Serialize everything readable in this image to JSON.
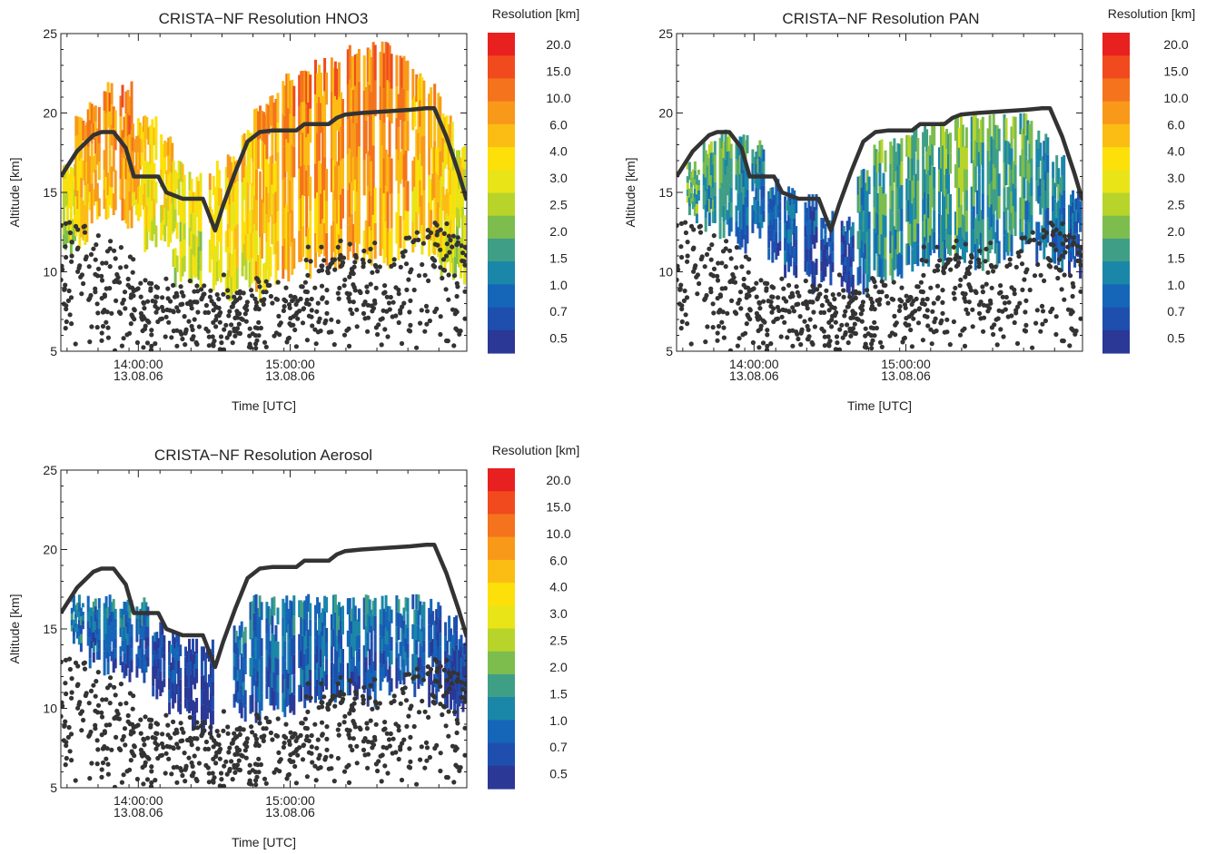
{
  "chart_data": [
    {
      "type": "heatmap",
      "title": "CRISTA−NF Resolution HNO3",
      "xlabel": "Time [UTC]",
      "ylabel": "Altitude [km]",
      "ylim": [
        5,
        25
      ],
      "yticks": [
        "5",
        "10",
        "15",
        "20",
        "25"
      ],
      "xlim": [
        "13:28",
        "15:39"
      ],
      "xticks": [
        {
          "time": "13:53",
          "line1": "14:00:00",
          "line2": "13.08.06"
        },
        {
          "time": "14:42",
          "line1": "15:00:00",
          "line2": "13.08.06"
        }
      ],
      "colorbar": {
        "title": "Resolution [km]",
        "labels": [
          "20.0",
          "15.0",
          "10.0",
          "6.0",
          "4.0",
          "3.0",
          "2.5",
          "2.0",
          "1.5",
          "1.0",
          "0.7",
          "0.5"
        ],
        "colors": [
          "#e82020",
          "#f04a1e",
          "#f4731c",
          "#f8991a",
          "#fbbd14",
          "#fde00a",
          "#e9e418",
          "#b8d42a",
          "#7cbd4e",
          "#3f9f86",
          "#1a86a8",
          "#1565b8",
          "#1e4fae",
          "#2b3896"
        ]
      },
      "description_series": "Colored resolution columns versus time and altitude, with flight altitude (thick line) and cloud points (dots).",
      "columns": [
        {
          "x": 0.02,
          "bottom": 10.5,
          "top": 17.0,
          "level": 6
        },
        {
          "x": 0.05,
          "bottom": 11.5,
          "top": 20.0,
          "level": 4
        },
        {
          "x": 0.08,
          "bottom": 13.0,
          "top": 21.0,
          "level": 3
        },
        {
          "x": 0.12,
          "bottom": 13.0,
          "top": 22.0,
          "level": 3
        },
        {
          "x": 0.16,
          "bottom": 12.5,
          "top": 22.0,
          "level": 3
        },
        {
          "x": 0.19,
          "bottom": 13.0,
          "top": 20.0,
          "level": 4
        },
        {
          "x": 0.22,
          "bottom": 11.0,
          "top": 20.0,
          "level": 5
        },
        {
          "x": 0.26,
          "bottom": 11.5,
          "top": 19.0,
          "level": 5
        },
        {
          "x": 0.29,
          "bottom": 9.0,
          "top": 17.0,
          "level": 6
        },
        {
          "x": 0.33,
          "bottom": 8.0,
          "top": 16.5,
          "level": 6
        },
        {
          "x": 0.38,
          "bottom": 8.5,
          "top": 17.0,
          "level": 5
        },
        {
          "x": 0.42,
          "bottom": 8.0,
          "top": 17.5,
          "level": 5
        },
        {
          "x": 0.46,
          "bottom": 9.0,
          "top": 19.0,
          "level": 5
        },
        {
          "x": 0.49,
          "bottom": 8.0,
          "top": 20.5,
          "level": 4
        },
        {
          "x": 0.52,
          "bottom": 9.0,
          "top": 21.5,
          "level": 4
        },
        {
          "x": 0.56,
          "bottom": 9.0,
          "top": 22.5,
          "level": 3
        },
        {
          "x": 0.6,
          "bottom": 9.5,
          "top": 23.0,
          "level": 3
        },
        {
          "x": 0.64,
          "bottom": 10.0,
          "top": 23.5,
          "level": 3
        },
        {
          "x": 0.68,
          "bottom": 10.0,
          "top": 23.5,
          "level": 3
        },
        {
          "x": 0.72,
          "bottom": 10.5,
          "top": 24.5,
          "level": 3
        },
        {
          "x": 0.76,
          "bottom": 10.0,
          "top": 24.5,
          "level": 3
        },
        {
          "x": 0.8,
          "bottom": 10.0,
          "top": 24.5,
          "level": 3
        },
        {
          "x": 0.84,
          "bottom": 10.5,
          "top": 24.0,
          "level": 3
        },
        {
          "x": 0.88,
          "bottom": 11.0,
          "top": 23.0,
          "level": 4
        },
        {
          "x": 0.92,
          "bottom": 10.0,
          "top": 22.0,
          "level": 4
        },
        {
          "x": 0.95,
          "bottom": 9.5,
          "top": 20.0,
          "level": 5
        },
        {
          "x": 0.98,
          "bottom": 9.0,
          "top": 18.0,
          "level": 6
        }
      ]
    },
    {
      "type": "heatmap",
      "title": "CRISTA−NF Resolution PAN",
      "xlabel": "Time [UTC]",
      "ylabel": "Altitude [km]",
      "ylim": [
        5,
        25
      ],
      "yticks": [
        "5",
        "10",
        "15",
        "20",
        "25"
      ],
      "xlim": [
        "13:28",
        "15:39"
      ],
      "xticks": [
        {
          "time": "13:53",
          "line1": "14:00:00",
          "line2": "13.08.06"
        },
        {
          "time": "14:42",
          "line1": "15:00:00",
          "line2": "13.08.06"
        }
      ],
      "colorbar": {
        "title": "Resolution [km]",
        "labels": [
          "20.0",
          "15.0",
          "10.0",
          "6.0",
          "4.0",
          "3.0",
          "2.5",
          "2.0",
          "1.5",
          "1.0",
          "0.7",
          "0.5"
        ],
        "colors": [
          "#e82020",
          "#f04a1e",
          "#f4731c",
          "#f8991a",
          "#fbbd14",
          "#fde00a",
          "#e9e418",
          "#b8d42a",
          "#7cbd4e",
          "#3f9f86",
          "#1a86a8",
          "#1565b8",
          "#1e4fae",
          "#2b3896"
        ]
      },
      "columns": [
        {
          "x": 0.04,
          "bottom": 13.0,
          "top": 17.0,
          "level": 8
        },
        {
          "x": 0.08,
          "bottom": 12.5,
          "top": 18.5,
          "level": 9
        },
        {
          "x": 0.12,
          "bottom": 12.0,
          "top": 19.0,
          "level": 9
        },
        {
          "x": 0.16,
          "bottom": 11.0,
          "top": 19.0,
          "level": 10
        },
        {
          "x": 0.2,
          "bottom": 12.0,
          "top": 18.5,
          "level": 10
        },
        {
          "x": 0.24,
          "bottom": 10.5,
          "top": 16.0,
          "level": 11
        },
        {
          "x": 0.28,
          "bottom": 9.5,
          "top": 15.5,
          "level": 11
        },
        {
          "x": 0.33,
          "bottom": 8.5,
          "top": 15.0,
          "level": 12
        },
        {
          "x": 0.37,
          "bottom": 9.0,
          "top": 14.0,
          "level": 12
        },
        {
          "x": 0.42,
          "bottom": 8.0,
          "top": 13.5,
          "level": 12
        },
        {
          "x": 0.46,
          "bottom": 8.5,
          "top": 16.5,
          "level": 10
        },
        {
          "x": 0.5,
          "bottom": 9.0,
          "top": 18.5,
          "level": 9
        },
        {
          "x": 0.54,
          "bottom": 9.0,
          "top": 18.5,
          "level": 9
        },
        {
          "x": 0.58,
          "bottom": 9.5,
          "top": 19.0,
          "level": 9
        },
        {
          "x": 0.62,
          "bottom": 10.0,
          "top": 19.5,
          "level": 9
        },
        {
          "x": 0.66,
          "bottom": 10.0,
          "top": 19.5,
          "level": 9
        },
        {
          "x": 0.7,
          "bottom": 10.5,
          "top": 20.0,
          "level": 8
        },
        {
          "x": 0.74,
          "bottom": 10.0,
          "top": 20.0,
          "level": 9
        },
        {
          "x": 0.78,
          "bottom": 10.0,
          "top": 20.0,
          "level": 9
        },
        {
          "x": 0.82,
          "bottom": 10.5,
          "top": 20.0,
          "level": 9
        },
        {
          "x": 0.86,
          "bottom": 11.0,
          "top": 20.0,
          "level": 9
        },
        {
          "x": 0.9,
          "bottom": 10.5,
          "top": 19.0,
          "level": 10
        },
        {
          "x": 0.94,
          "bottom": 10.0,
          "top": 17.5,
          "level": 10
        },
        {
          "x": 0.98,
          "bottom": 9.5,
          "top": 15.5,
          "level": 11
        }
      ]
    },
    {
      "type": "heatmap",
      "title": "CRISTA−NF Resolution Aerosol",
      "xlabel": "Time [UTC]",
      "ylabel": "Altitude [km]",
      "ylim": [
        5,
        25
      ],
      "yticks": [
        "5",
        "10",
        "15",
        "20",
        "25"
      ],
      "xlim": [
        "13:28",
        "15:39"
      ],
      "xticks": [
        {
          "time": "13:53",
          "line1": "14:00:00",
          "line2": "13.08.06"
        },
        {
          "time": "14:42",
          "line1": "15:00:00",
          "line2": "13.08.06"
        }
      ],
      "colorbar": {
        "title": "Resolution [km]",
        "labels": [
          "20.0",
          "15.0",
          "10.0",
          "6.0",
          "4.0",
          "3.0",
          "2.5",
          "2.0",
          "1.5",
          "1.0",
          "0.7",
          "0.5"
        ],
        "colors": [
          "#e82020",
          "#f04a1e",
          "#f4731c",
          "#f8991a",
          "#fbbd14",
          "#fde00a",
          "#e9e418",
          "#b8d42a",
          "#7cbd4e",
          "#3f9f86",
          "#1a86a8",
          "#1565b8",
          "#1e4fae",
          "#2b3896"
        ]
      },
      "columns": [
        {
          "x": 0.04,
          "bottom": 13.5,
          "top": 17.2,
          "level": 10
        },
        {
          "x": 0.08,
          "bottom": 12.5,
          "top": 17.2,
          "level": 11
        },
        {
          "x": 0.12,
          "bottom": 12.0,
          "top": 17.2,
          "level": 11
        },
        {
          "x": 0.16,
          "bottom": 11.5,
          "top": 17.2,
          "level": 11
        },
        {
          "x": 0.2,
          "bottom": 11.5,
          "top": 17.2,
          "level": 11
        },
        {
          "x": 0.24,
          "bottom": 10.5,
          "top": 15.5,
          "level": 12
        },
        {
          "x": 0.28,
          "bottom": 9.5,
          "top": 15.0,
          "level": 12
        },
        {
          "x": 0.32,
          "bottom": 8.5,
          "top": 14.5,
          "level": 13
        },
        {
          "x": 0.36,
          "bottom": 8.0,
          "top": 14.5,
          "level": 13
        },
        {
          "x": 0.44,
          "bottom": 9.0,
          "top": 15.5,
          "level": 11
        },
        {
          "x": 0.48,
          "bottom": 9.0,
          "top": 17.2,
          "level": 11
        },
        {
          "x": 0.52,
          "bottom": 9.5,
          "top": 17.2,
          "level": 11
        },
        {
          "x": 0.56,
          "bottom": 9.0,
          "top": 17.2,
          "level": 11
        },
        {
          "x": 0.6,
          "bottom": 9.5,
          "top": 17.2,
          "level": 11
        },
        {
          "x": 0.64,
          "bottom": 10.0,
          "top": 17.2,
          "level": 11
        },
        {
          "x": 0.68,
          "bottom": 10.0,
          "top": 17.2,
          "level": 11
        },
        {
          "x": 0.72,
          "bottom": 10.5,
          "top": 17.2,
          "level": 11
        },
        {
          "x": 0.76,
          "bottom": 10.0,
          "top": 17.2,
          "level": 11
        },
        {
          "x": 0.8,
          "bottom": 10.5,
          "top": 17.2,
          "level": 11
        },
        {
          "x": 0.84,
          "bottom": 11.0,
          "top": 17.2,
          "level": 11
        },
        {
          "x": 0.88,
          "bottom": 10.5,
          "top": 17.2,
          "level": 11
        },
        {
          "x": 0.92,
          "bottom": 10.0,
          "top": 17.0,
          "level": 12
        },
        {
          "x": 0.96,
          "bottom": 9.5,
          "top": 16.0,
          "level": 12
        },
        {
          "x": 0.99,
          "bottom": 9.0,
          "top": 15.0,
          "level": 12
        }
      ]
    }
  ],
  "flight_altitude": {
    "x": [
      0.0,
      0.04,
      0.08,
      0.1,
      0.13,
      0.16,
      0.18,
      0.2,
      0.24,
      0.26,
      0.3,
      0.32,
      0.35,
      0.38,
      0.4,
      0.43,
      0.46,
      0.49,
      0.52,
      0.58,
      0.6,
      0.66,
      0.68,
      0.7,
      0.74,
      0.8,
      0.86,
      0.9,
      0.92,
      0.95,
      0.98,
      1.0
    ],
    "altitude": [
      16.0,
      17.6,
      18.6,
      18.8,
      18.8,
      17.8,
      16.0,
      16.0,
      16.0,
      15.0,
      14.6,
      14.6,
      14.6,
      12.6,
      14.2,
      16.3,
      18.2,
      18.8,
      18.9,
      18.9,
      19.3,
      19.3,
      19.7,
      19.9,
      20.0,
      20.1,
      20.2,
      20.3,
      20.3,
      18.5,
      16.2,
      14.5
    ]
  }
}
